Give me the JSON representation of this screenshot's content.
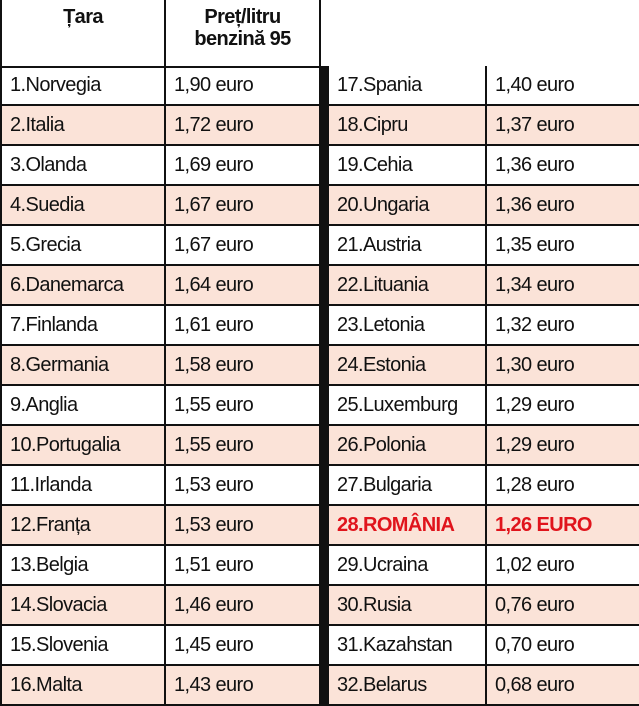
{
  "headers": [
    "Țara",
    "Preț/litru\nbenzină 95"
  ],
  "left_rows": [
    [
      "1.Norvegia",
      "1,90 euro"
    ],
    [
      "2.Italia",
      "1,72 euro"
    ],
    [
      "3.Olanda",
      "1,69 euro"
    ],
    [
      "4.Suedia",
      "1,67 euro"
    ],
    [
      "5.Grecia",
      "1,67 euro"
    ],
    [
      "6.Danemarca",
      "1,64 euro"
    ],
    [
      "7.Finlanda",
      "1,61 euro"
    ],
    [
      "8.Germania",
      "1,58 euro"
    ],
    [
      "9.Anglia",
      "1,55 euro"
    ],
    [
      "10.Portugalia",
      "1,55 euro"
    ],
    [
      "11.Irlanda",
      "1,53 euro"
    ],
    [
      "12.Franța",
      "1,53 euro"
    ],
    [
      "13.Belgia",
      "1,51 euro"
    ],
    [
      "14.Slovacia",
      "1,46 euro"
    ],
    [
      "15.Slovenia",
      "1,45 euro"
    ],
    [
      "16.Malta",
      "1,43 euro"
    ]
  ],
  "right_rows": [
    [
      "17.Spania",
      "1,40 euro"
    ],
    [
      "18.Cipru",
      "1,37 euro"
    ],
    [
      "19.Cehia",
      "1,36 euro"
    ],
    [
      "20.Ungaria",
      "1,36 euro"
    ],
    [
      "21.Austria",
      "1,35 euro"
    ],
    [
      "22.Lituania",
      "1,34 euro"
    ],
    [
      "23.Letonia",
      "1,32 euro"
    ],
    [
      "24.Estonia",
      "1,30 euro"
    ],
    [
      "25.Luxemburg",
      "1,29 euro"
    ],
    [
      "26.Polonia",
      "1,29 euro"
    ],
    [
      "27.Bulgaria",
      "1,28 euro"
    ],
    [
      "28.ROMÂNIA",
      "1,26 EURO"
    ],
    [
      "29.Ucraina",
      "1,02 euro"
    ],
    [
      "30.Rusia",
      "0,76 euro"
    ],
    [
      "31.Kazahstan",
      "0,70 euro"
    ],
    [
      "32.Belarus",
      "0,68 euro"
    ]
  ]
}
